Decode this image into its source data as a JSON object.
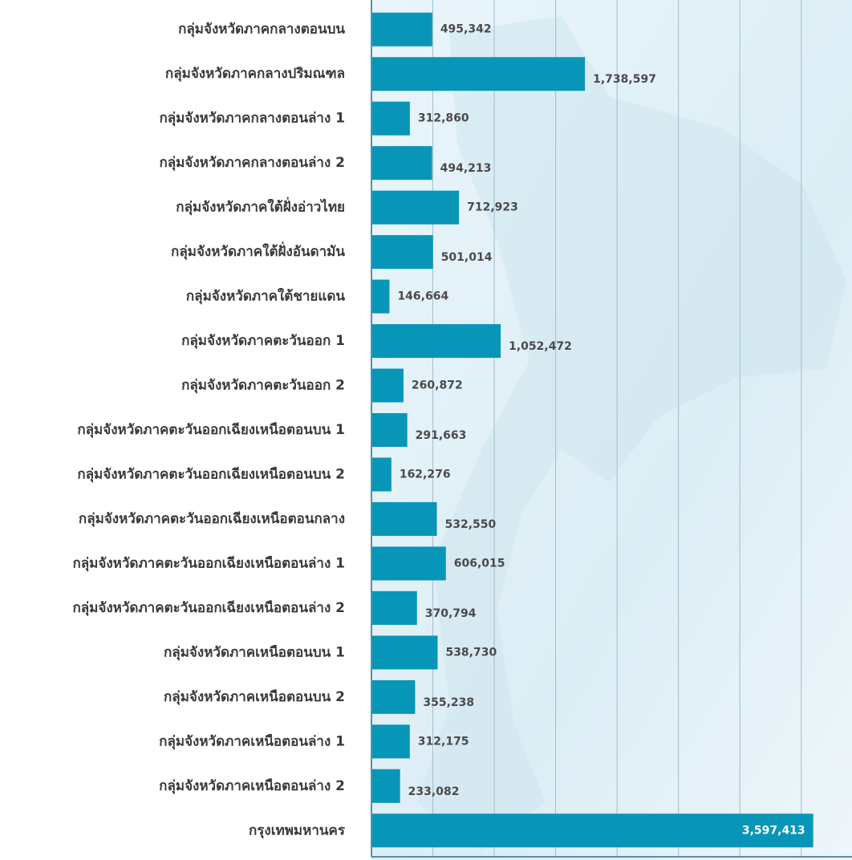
{
  "chart_data": {
    "type": "bar",
    "orientation": "horizontal",
    "categories": [
      "กลุ่มจังหวัดภาคกลางตอนบน",
      "กลุ่มจังหวัดภาคกลางปริมณฑล",
      "กลุ่มจังหวัดภาคกลางตอนล่าง 1",
      "กลุ่มจังหวัดภาคกลางตอนล่าง 2",
      "กลุ่มจังหวัดภาคใต้ฝั่งอ่าวไทย",
      "กลุ่มจังหวัดภาคใต้ฝั่งอันดามัน",
      "กลุ่มจังหวัดภาคใต้ชายแดน",
      "กลุ่มจังหวัดภาคตะวันออก 1",
      "กลุ่มจังหวัดภาคตะวันออก 2",
      "กลุ่มจังหวัดภาคตะวันออกเฉียงเหนือตอนบน 1",
      "กลุ่มจังหวัดภาคตะวันออกเฉียงเหนือตอนบน 2",
      "กลุ่มจังหวัดภาคตะวันออกเฉียงเหนือตอนกลาง",
      "กลุ่มจังหวัดภาคตะวันออกเฉียงเหนือตอนล่าง 1",
      "กลุ่มจังหวัดภาคตะวันออกเฉียงเหนือตอนล่าง 2",
      "กลุ่มจังหวัดภาคเหนือตอนบน 1",
      "กลุ่มจังหวัดภาคเหนือตอนบน 2",
      "กลุ่มจังหวัดภาคเหนือตอนล่าง 1",
      "กลุ่มจังหวัดภาคเหนือตอนล่าง 2",
      "กรุงเทพมหานคร"
    ],
    "values": [
      495342,
      1738597,
      312860,
      494213,
      712923,
      501014,
      146664,
      1052472,
      260872,
      291663,
      162276,
      532550,
      606015,
      370794,
      538730,
      355238,
      312175,
      233082,
      3597413
    ],
    "value_labels": [
      "495,342",
      "1,738,597",
      "312,860",
      "494,213",
      "712,923",
      "501,014",
      "146,664",
      "1,052,472",
      "260,872",
      "291,663",
      "162,276",
      "532,550",
      "606,015",
      "370,794",
      "538,730",
      "355,238",
      "312,175",
      "233,082",
      "3,597,413"
    ],
    "color": "#0796b8",
    "xlim": [
      0,
      3900000
    ],
    "xticks": [
      0,
      500000,
      1000000,
      1500000,
      2000000,
      2500000,
      3000000,
      3500000
    ],
    "grid": true
  }
}
